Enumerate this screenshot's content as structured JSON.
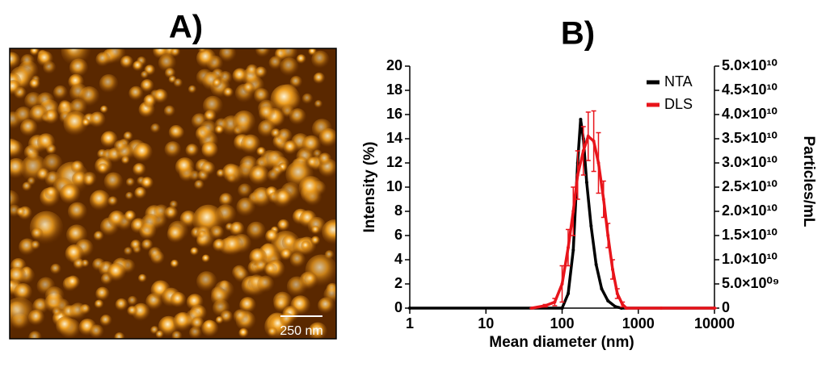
{
  "panel_a": {
    "label": "A)",
    "scale_bar": "250 nm"
  },
  "chart_data": {
    "type": "line",
    "title": "B)",
    "x_label": "Mean diameter (nm)",
    "y_label": "Intensity (%)",
    "y2_label": "Particles/mL",
    "x_log": true,
    "xlim": [
      1,
      10000
    ],
    "xticks": [
      1,
      10,
      100,
      1000,
      10000
    ],
    "ylim": [
      0,
      20
    ],
    "yticks": [
      0,
      2,
      4,
      6,
      8,
      10,
      12,
      14,
      16,
      18,
      20
    ],
    "y2lim": [
      0,
      50000000000
    ],
    "y2ticks": [
      0,
      {
        "value": 5000000000,
        "label": "5.0×10⁰⁹"
      },
      {
        "value": 10000000000,
        "label": "1.0×10¹⁰"
      },
      {
        "value": 15000000000,
        "label": "1.5×10¹⁰"
      },
      {
        "value": 20000000000,
        "label": "2.0×10¹⁰"
      },
      {
        "value": 25000000000,
        "label": "2.5×10¹⁰"
      },
      {
        "value": 30000000000,
        "label": "3.0×10¹⁰"
      },
      {
        "value": 35000000000,
        "label": "3.5×10¹⁰"
      },
      {
        "value": 40000000000,
        "label": "4.0×10¹⁰"
      },
      {
        "value": 45000000000,
        "label": "4.5×10¹⁰"
      },
      {
        "value": 50000000000,
        "label": "5.0×10¹⁰"
      }
    ],
    "grid": false,
    "legend": "upper right",
    "series": [
      {
        "name": "NTA",
        "color": "#000000",
        "axis": "y2",
        "x": [
          1,
          100,
          120,
          140,
          160,
          175,
          190,
          210,
          240,
          280,
          330,
          400,
          500,
          600,
          10000
        ],
        "values": [
          0,
          0,
          3000000000,
          12000000000,
          30000000000,
          39000000000,
          35000000000,
          26000000000,
          17000000000,
          9000000000,
          4000000000,
          1500000000,
          300000000,
          0,
          0
        ]
      },
      {
        "name": "DLS",
        "color": "#e8141b",
        "x": [
          40,
          60,
          80,
          100,
          120,
          140,
          160,
          190,
          220,
          260,
          300,
          350,
          400,
          460,
          530,
          620,
          700,
          2000,
          10000
        ],
        "values": [
          0,
          0.2,
          0.5,
          2,
          5,
          8,
          11,
          13,
          14.2,
          13.8,
          12,
          9,
          6,
          3.2,
          1.2,
          0.3,
          0,
          0,
          0
        ],
        "errors": [
          0,
          0.1,
          0.3,
          1.5,
          1.5,
          2,
          2,
          2,
          2,
          2.5,
          2.5,
          1.5,
          1,
          0.8,
          0.4,
          0.2,
          0,
          0,
          0
        ]
      }
    ]
  }
}
